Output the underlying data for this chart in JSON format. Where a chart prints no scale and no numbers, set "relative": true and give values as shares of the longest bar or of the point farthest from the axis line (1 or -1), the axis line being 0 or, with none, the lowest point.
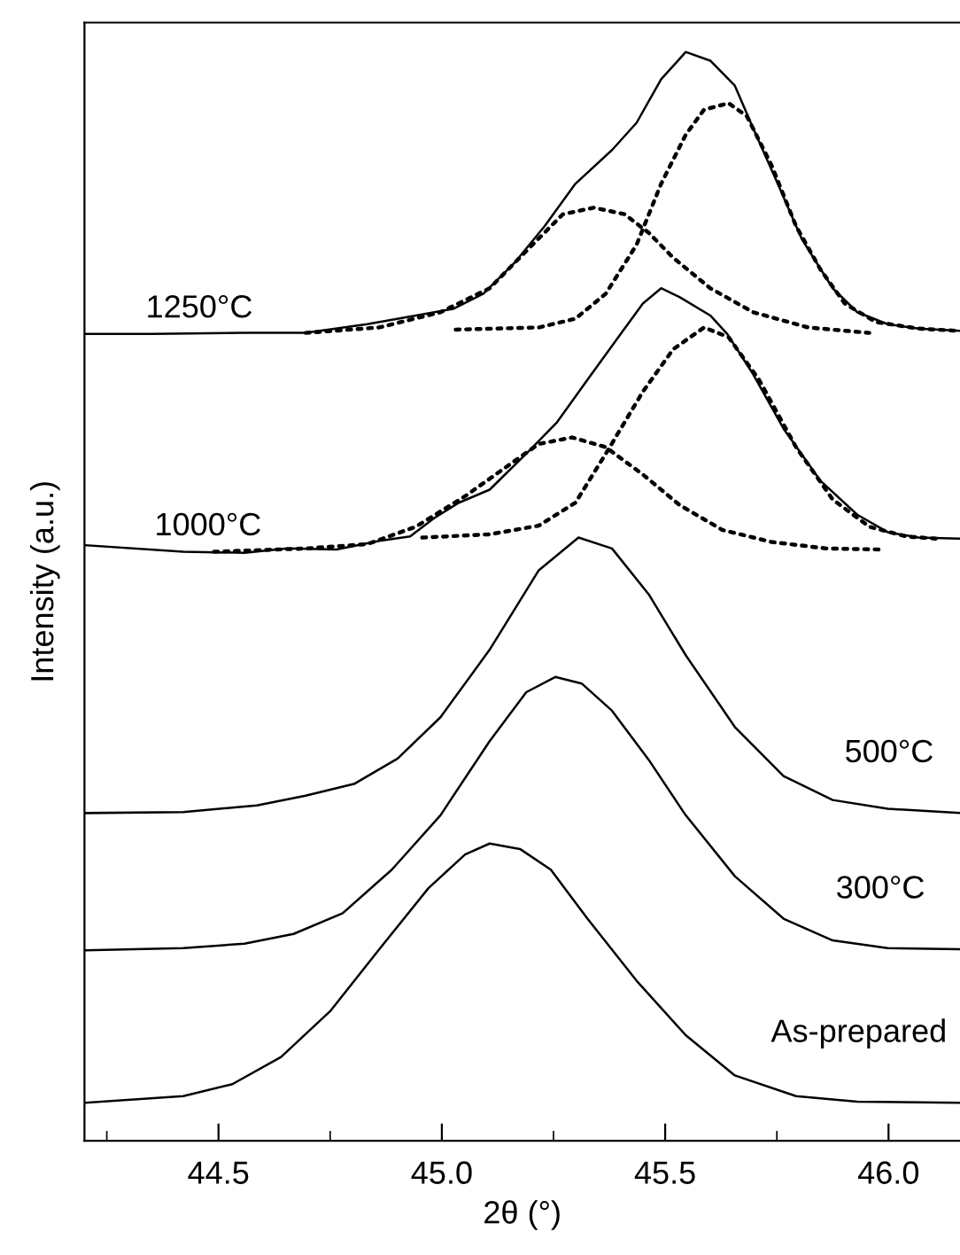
{
  "chart_data": {
    "type": "line",
    "relative": true,
    "xlabel": "2θ (°)",
    "ylabel": "Intensity (a.u.)",
    "xlim": [
      44.2,
      46.16
    ],
    "xticks": [
      {
        "value": 44.25,
        "label": null
      },
      {
        "value": 44.5,
        "label": "44.5"
      },
      {
        "value": 44.75,
        "label": null
      },
      {
        "value": 45.0,
        "label": "45.0"
      },
      {
        "value": 45.25,
        "label": null
      },
      {
        "value": 45.5,
        "label": "45.5"
      },
      {
        "value": 45.75,
        "label": null
      },
      {
        "value": 46.0,
        "label": "46.0"
      }
    ],
    "tick_labels": "x",
    "grid": false,
    "legend": false,
    "marker": "none",
    "series": [
      {
        "name": "1250°C",
        "color": "#000000",
        "line_style": "solid",
        "x": [
          44.202,
          44.352,
          44.558,
          44.695,
          44.833,
          44.942,
          45.025,
          45.093,
          45.162,
          45.23,
          45.299,
          45.381,
          45.436,
          45.491,
          45.546,
          45.601,
          45.656,
          45.697,
          45.752,
          45.806,
          45.875,
          45.93,
          45.998,
          46.067,
          46.16
        ],
        "values": [
          0.741,
          0.741,
          0.742,
          0.742,
          0.75,
          0.758,
          0.764,
          0.778,
          0.806,
          0.84,
          0.879,
          0.91,
          0.935,
          0.975,
          1.0,
          0.992,
          0.969,
          0.93,
          0.879,
          0.828,
          0.783,
          0.761,
          0.75,
          0.746,
          0.744
        ]
      },
      {
        "color": "#000000",
        "line_style": "dotted",
        "x": [
          44.695,
          44.86,
          44.997,
          45.107,
          45.203,
          45.271,
          45.34,
          45.409,
          45.463,
          45.518,
          45.601,
          45.697,
          45.82,
          45.957
        ],
        "values": [
          0.742,
          0.747,
          0.761,
          0.783,
          0.823,
          0.851,
          0.857,
          0.851,
          0.834,
          0.811,
          0.783,
          0.761,
          0.747,
          0.742
        ]
      },
      {
        "color": "#000000",
        "line_style": "dotted",
        "x": [
          45.031,
          45.217,
          45.299,
          45.367,
          45.436,
          45.491,
          45.546,
          45.587,
          45.642,
          45.683,
          45.738,
          45.793,
          45.848,
          45.902,
          45.971,
          46.067,
          46.149
        ],
        "values": [
          0.745,
          0.747,
          0.755,
          0.778,
          0.823,
          0.879,
          0.924,
          0.947,
          0.953,
          0.941,
          0.896,
          0.84,
          0.8,
          0.769,
          0.752,
          0.746,
          0.744
        ]
      },
      {
        "name": "1000°C",
        "color": "#000000",
        "line_style": "solid",
        "x": [
          44.202,
          44.421,
          44.558,
          44.654,
          44.764,
          44.86,
          44.929,
          44.983,
          45.038,
          45.107,
          45.189,
          45.258,
          45.326,
          45.395,
          45.45,
          45.491,
          45.532,
          45.601,
          45.639,
          45.697,
          45.765,
          45.848,
          45.93,
          45.998,
          46.067,
          46.16
        ],
        "values": [
          0.547,
          0.541,
          0.54,
          0.544,
          0.543,
          0.551,
          0.555,
          0.572,
          0.586,
          0.598,
          0.631,
          0.66,
          0.699,
          0.738,
          0.769,
          0.783,
          0.775,
          0.758,
          0.741,
          0.704,
          0.654,
          0.606,
          0.575,
          0.559,
          0.554,
          0.553
        ]
      },
      {
        "color": "#000000",
        "line_style": "dotted",
        "x": [
          44.49,
          44.695,
          44.833,
          44.942,
          45.052,
          45.148,
          45.217,
          45.292,
          45.367,
          45.45,
          45.532,
          45.628,
          45.738,
          45.861,
          45.992
        ],
        "values": [
          0.541,
          0.544,
          0.548,
          0.564,
          0.592,
          0.62,
          0.64,
          0.646,
          0.637,
          0.612,
          0.584,
          0.561,
          0.55,
          0.544,
          0.543
        ]
      },
      {
        "color": "#000000",
        "line_style": "dotted",
        "x": [
          44.956,
          45.107,
          45.217,
          45.299,
          45.367,
          45.45,
          45.518,
          45.587,
          45.642,
          45.71,
          45.793,
          45.875,
          45.957,
          46.04,
          46.108
        ],
        "values": [
          0.554,
          0.557,
          0.565,
          0.586,
          0.631,
          0.688,
          0.727,
          0.747,
          0.738,
          0.699,
          0.637,
          0.589,
          0.564,
          0.555,
          0.553
        ]
      },
      {
        "name": "500°C",
        "color": "#000000",
        "line_style": "solid",
        "x": [
          44.202,
          44.421,
          44.586,
          44.695,
          44.805,
          44.901,
          44.997,
          45.107,
          45.217,
          45.306,
          45.381,
          45.463,
          45.546,
          45.656,
          45.765,
          45.875,
          45.998,
          46.16
        ],
        "values": [
          0.301,
          0.302,
          0.308,
          0.317,
          0.328,
          0.351,
          0.389,
          0.451,
          0.524,
          0.554,
          0.544,
          0.502,
          0.446,
          0.38,
          0.335,
          0.313,
          0.305,
          0.301
        ]
      },
      {
        "name": "300°C",
        "color": "#000000",
        "line_style": "solid",
        "x": [
          44.202,
          44.421,
          44.558,
          44.668,
          44.778,
          44.888,
          44.997,
          45.107,
          45.189,
          45.254,
          45.313,
          45.381,
          45.463,
          45.546,
          45.656,
          45.765,
          45.875,
          45.998,
          46.16
        ],
        "values": [
          0.175,
          0.177,
          0.181,
          0.19,
          0.209,
          0.249,
          0.299,
          0.367,
          0.412,
          0.426,
          0.42,
          0.395,
          0.35,
          0.299,
          0.243,
          0.204,
          0.184,
          0.177,
          0.176
        ]
      },
      {
        "name": "As-prepared",
        "color": "#000000",
        "line_style": "solid",
        "x": [
          44.202,
          44.421,
          44.531,
          44.64,
          44.75,
          44.86,
          44.97,
          45.052,
          45.107,
          45.175,
          45.244,
          45.326,
          45.436,
          45.546,
          45.656,
          45.793,
          45.93,
          46.16
        ],
        "values": [
          0.035,
          0.041,
          0.052,
          0.077,
          0.119,
          0.176,
          0.232,
          0.263,
          0.273,
          0.268,
          0.249,
          0.204,
          0.147,
          0.097,
          0.06,
          0.041,
          0.036,
          0.035
        ]
      }
    ]
  }
}
